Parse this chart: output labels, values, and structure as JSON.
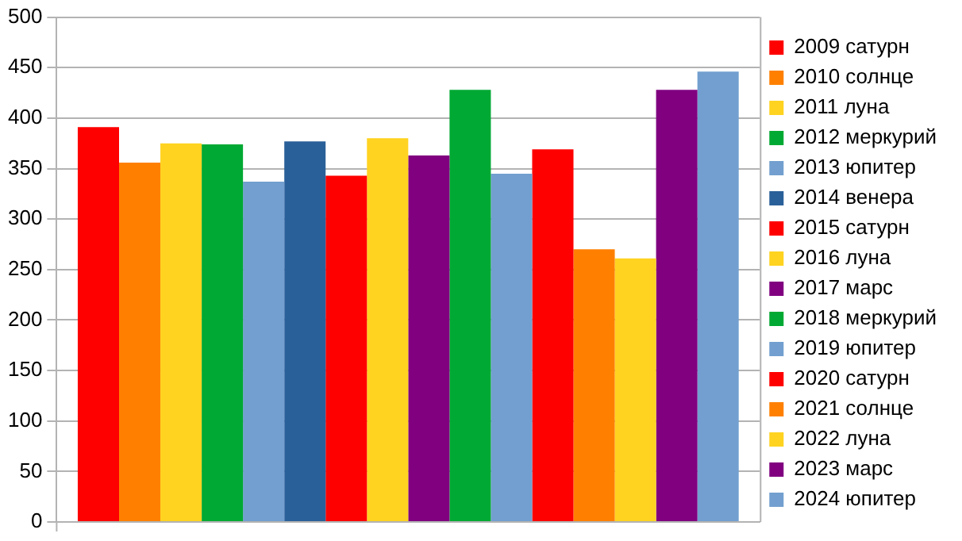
{
  "chart_data": {
    "type": "bar",
    "categories": [
      null
    ],
    "series": [
      {
        "name": "2009 сатурн",
        "color": "#ff0000",
        "values": [
          391
        ]
      },
      {
        "name": "2010 солнце",
        "color": "#ff8000",
        "values": [
          356
        ]
      },
      {
        "name": "2011 луна",
        "color": "#ffd320",
        "values": [
          375
        ]
      },
      {
        "name": "2012 меркурий",
        "color": "#00a933",
        "values": [
          374
        ]
      },
      {
        "name": "2013 юпитер",
        "color": "#729fcf",
        "values": [
          337
        ]
      },
      {
        "name": "2014 венера",
        "color": "#2a6099",
        "values": [
          377
        ]
      },
      {
        "name": "2015 сатурн",
        "color": "#ff0000",
        "values": [
          343
        ]
      },
      {
        "name": "2016 луна",
        "color": "#ffd320",
        "values": [
          380
        ]
      },
      {
        "name": "2017 марс",
        "color": "#800080",
        "values": [
          363
        ]
      },
      {
        "name": "2018 меркурий",
        "color": "#00a933",
        "values": [
          428
        ]
      },
      {
        "name": "2019 юпитер",
        "color": "#729fcf",
        "values": [
          345
        ]
      },
      {
        "name": "2020 сатурн",
        "color": "#ff0000",
        "values": [
          369
        ]
      },
      {
        "name": "2021 солнце",
        "color": "#ff8000",
        "values": [
          270
        ]
      },
      {
        "name": "2022 луна",
        "color": "#ffd320",
        "values": [
          261
        ]
      },
      {
        "name": "2023 марс",
        "color": "#800080",
        "values": [
          428
        ]
      },
      {
        "name": "2024 юпитер",
        "color": "#729fcf",
        "values": [
          446
        ]
      }
    ],
    "ylim": [
      0,
      500
    ],
    "yticks": [
      0,
      50,
      100,
      150,
      200,
      250,
      300,
      350,
      400,
      450,
      500
    ],
    "grid": "y",
    "legend": "right"
  }
}
